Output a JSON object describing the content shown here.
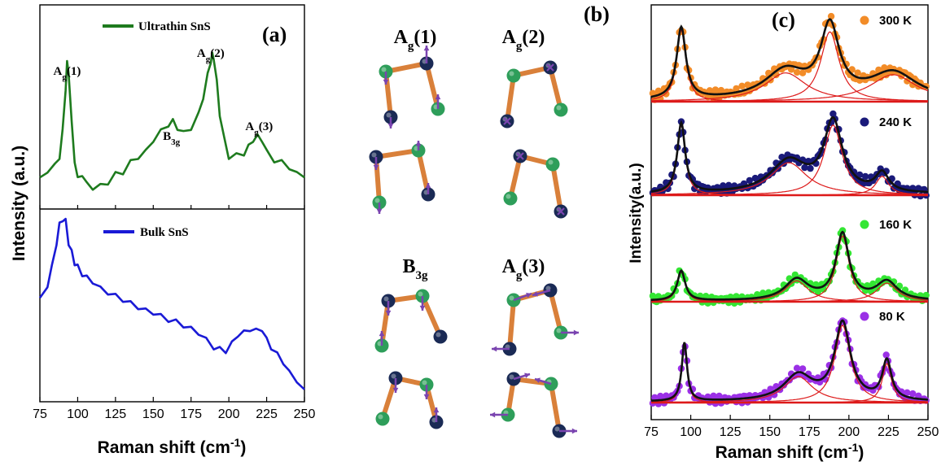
{
  "panels": {
    "a": {
      "label": "(a)",
      "legend_top": "Ultrathin SnS",
      "legend_bottom": "Bulk SnS",
      "ylabel": "Intensity (a.u.)",
      "xlabel_main": "Raman shift (cm",
      "xlabel_sup": "-1",
      "xlabel_end": ")",
      "peak_labels": [
        {
          "base": "A",
          "sub": "g",
          "suffix": "(1)",
          "x": 93
        },
        {
          "base": "B",
          "sub": "3g",
          "suffix": "",
          "x": 162
        },
        {
          "base": "A",
          "sub": "g",
          "suffix": "(2)",
          "x": 188
        },
        {
          "base": "A",
          "sub": "g",
          "suffix": "(3)",
          "x": 220
        }
      ]
    },
    "b": {
      "label": "(b)",
      "modes": [
        {
          "base": "A",
          "sub": "g",
          "suffix": "(1)"
        },
        {
          "base": "A",
          "sub": "g",
          "suffix": "(2)"
        },
        {
          "base": "B",
          "sub": "3g",
          "suffix": ""
        },
        {
          "base": "A",
          "sub": "g",
          "suffix": "(3)"
        }
      ]
    },
    "c": {
      "label": "(c)",
      "ylabel": "Intensity(a.u.)",
      "xlabel_main": "Raman shift (cm",
      "xlabel_sup": "-1",
      "xlabel_end": ")"
    }
  },
  "colors": {
    "ultrathin": "#1e7b1e",
    "bulk": "#1a1ad6",
    "t300": "#f28c28",
    "t240": "#1a1a7a",
    "t160": "#33e633",
    "t80": "#9b30e6",
    "fit": "#111111",
    "component": "#dd1a1a",
    "sn_atom": "#1a2a55",
    "s_atom": "#2e9e5a",
    "bond": "#d9803a",
    "arrow": "#7a44b0"
  },
  "chart_data": [
    {
      "type": "line",
      "panel": "a-top",
      "title": "",
      "xlabel": "Raman shift (cm-1)",
      "ylabel": "Intensity (a.u.)",
      "xlim": [
        75,
        250
      ],
      "series": [
        {
          "name": "Ultrathin SnS",
          "x": [
            75,
            80,
            85,
            88,
            90,
            92,
            93,
            94,
            96,
            98,
            100,
            103,
            106,
            110,
            115,
            120,
            125,
            130,
            135,
            140,
            145,
            150,
            155,
            160,
            163,
            166,
            170,
            175,
            180,
            183,
            186,
            188,
            189,
            190,
            192,
            194,
            197,
            200,
            205,
            210,
            213,
            216,
            219,
            222,
            225,
            230,
            235,
            240,
            245,
            250
          ],
          "values": [
            0.18,
            0.22,
            0.25,
            0.3,
            0.45,
            0.7,
            0.85,
            0.8,
            0.5,
            0.28,
            0.17,
            0.2,
            0.14,
            0.12,
            0.13,
            0.15,
            0.2,
            0.21,
            0.27,
            0.3,
            0.33,
            0.4,
            0.45,
            0.49,
            0.51,
            0.47,
            0.44,
            0.47,
            0.55,
            0.65,
            0.78,
            0.86,
            0.9,
            0.88,
            0.74,
            0.55,
            0.4,
            0.3,
            0.31,
            0.32,
            0.36,
            0.4,
            0.42,
            0.4,
            0.33,
            0.28,
            0.27,
            0.24,
            0.2,
            0.18
          ]
        }
      ]
    },
    {
      "type": "line",
      "panel": "a-bottom",
      "title": "",
      "xlabel": "Raman shift (cm-1)",
      "ylabel": "Intensity (a.u.)",
      "xlim": [
        75,
        250
      ],
      "xticks": [
        75,
        100,
        125,
        150,
        175,
        200,
        225,
        250
      ],
      "series": [
        {
          "name": "Bulk SnS",
          "x": [
            75,
            80,
            83,
            86,
            88,
            90,
            92,
            94,
            96,
            98,
            100,
            103,
            106,
            110,
            115,
            120,
            125,
            130,
            135,
            140,
            145,
            150,
            155,
            160,
            165,
            170,
            175,
            180,
            185,
            190,
            194,
            198,
            202,
            206,
            210,
            214,
            218,
            222,
            225,
            228,
            232,
            236,
            240,
            245,
            250
          ],
          "values": [
            0.55,
            0.62,
            0.72,
            0.85,
            0.95,
            0.98,
            0.97,
            0.85,
            0.8,
            0.74,
            0.72,
            0.68,
            0.66,
            0.64,
            0.6,
            0.58,
            0.56,
            0.54,
            0.52,
            0.5,
            0.48,
            0.47,
            0.45,
            0.43,
            0.42,
            0.4,
            0.38,
            0.36,
            0.32,
            0.28,
            0.27,
            0.26,
            0.3,
            0.35,
            0.36,
            0.38,
            0.37,
            0.38,
            0.32,
            0.28,
            0.24,
            0.2,
            0.14,
            0.1,
            0.05
          ]
        }
      ]
    },
    {
      "type": "scatter",
      "panel": "c",
      "title": "",
      "xlabel": "Raman shift (cm-1)",
      "ylabel": "Intensity(a.u.)",
      "xlim": [
        75,
        250
      ],
      "xticks": [
        75,
        100,
        125,
        150,
        175,
        200,
        225,
        250
      ],
      "legend_position": "right of each trace",
      "series": [
        {
          "name": "300 K",
          "color_key": "t300",
          "peaks": [
            {
              "center": 94,
              "amp": 0.8,
              "width": 3.5
            },
            {
              "center": 160,
              "amp": 0.32,
              "width": 16
            },
            {
              "center": 188,
              "amp": 0.78,
              "width": 7
            },
            {
              "center": 228,
              "amp": 0.3,
              "width": 18
            }
          ]
        },
        {
          "name": "240 K",
          "color_key": "t240",
          "peaks": [
            {
              "center": 94,
              "amp": 0.82,
              "width": 3
            },
            {
              "center": 162,
              "amp": 0.38,
              "width": 14
            },
            {
              "center": 190,
              "amp": 0.82,
              "width": 7
            },
            {
              "center": 221,
              "amp": 0.22,
              "width": 5
            }
          ]
        },
        {
          "name": "160 K",
          "color_key": "t160",
          "peaks": [
            {
              "center": 94,
              "amp": 0.4,
              "width": 3
            },
            {
              "center": 167,
              "amp": 0.28,
              "width": 9
            },
            {
              "center": 196,
              "amp": 0.88,
              "width": 5
            },
            {
              "center": 224,
              "amp": 0.25,
              "width": 8
            }
          ]
        },
        {
          "name": "80 K",
          "color_key": "t80",
          "peaks": [
            {
              "center": 96,
              "amp": 0.72,
              "width": 2
            },
            {
              "center": 168,
              "amp": 0.32,
              "width": 11
            },
            {
              "center": 196,
              "amp": 0.95,
              "width": 6
            },
            {
              "center": 224,
              "amp": 0.48,
              "width": 3.5
            }
          ]
        }
      ]
    }
  ]
}
